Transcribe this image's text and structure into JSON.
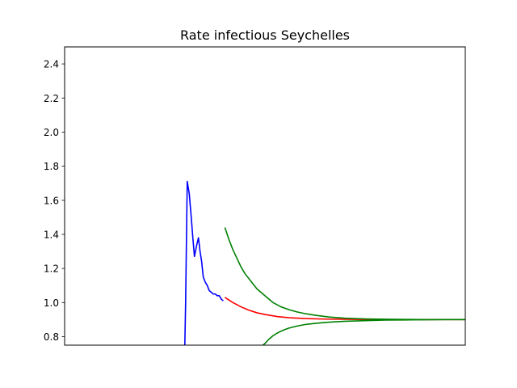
{
  "chart_data": {
    "type": "line",
    "title": "Rate infectious Seychelles",
    "xlabel": "",
    "ylabel": "",
    "ylim": [
      0.75,
      2.5
    ],
    "xlim": [
      0,
      100
    ],
    "yticks": [
      "0.8",
      "1.0",
      "1.2",
      "1.4",
      "1.6",
      "1.8",
      "2.0",
      "2.2",
      "2.4"
    ],
    "xticks_visible": false,
    "grid": false,
    "legend": "none",
    "series": [
      {
        "color": "#0000ff",
        "x": [
          30.0,
          30.2,
          30.6,
          31.1,
          31.6,
          32.0,
          32.4,
          32.9,
          33.4,
          33.8,
          34.2,
          34.6,
          35.1,
          35.6,
          36.1,
          36.6,
          37.1,
          37.6,
          38.1,
          38.6,
          39.1,
          39.6
        ],
        "y": [
          0.75,
          1.0,
          1.71,
          1.64,
          1.5,
          1.38,
          1.27,
          1.33,
          1.38,
          1.3,
          1.24,
          1.15,
          1.12,
          1.1,
          1.07,
          1.06,
          1.05,
          1.05,
          1.04,
          1.04,
          1.02,
          1.01
        ]
      },
      {
        "color": "#ff0000",
        "x": [
          40,
          42,
          44,
          46,
          48,
          50,
          53,
          56,
          60,
          65,
          70,
          75,
          80,
          85,
          90,
          95,
          100
        ],
        "y": [
          1.03,
          1.0,
          0.975,
          0.955,
          0.94,
          0.93,
          0.918,
          0.911,
          0.906,
          0.903,
          0.902,
          0.901,
          0.9,
          0.9,
          0.9,
          0.9,
          0.9
        ]
      },
      {
        "color": "#008000",
        "x": [
          40,
          41,
          42,
          43,
          44,
          45,
          46,
          47,
          48,
          50,
          52,
          54,
          56,
          58,
          60,
          63,
          66,
          70,
          75,
          80,
          85,
          90,
          95,
          100
        ],
        "y": [
          1.44,
          1.37,
          1.31,
          1.26,
          1.21,
          1.17,
          1.14,
          1.11,
          1.08,
          1.04,
          1.0,
          0.975,
          0.958,
          0.945,
          0.935,
          0.924,
          0.915,
          0.908,
          0.904,
          0.902,
          0.901,
          0.9,
          0.9,
          0.9
        ]
      },
      {
        "color": "#008000",
        "x": [
          49.5,
          50,
          51,
          52,
          53,
          54,
          55,
          56,
          58,
          60,
          63,
          66,
          70,
          75,
          80,
          85,
          90,
          95,
          100
        ],
        "y": [
          0.75,
          0.76,
          0.785,
          0.805,
          0.82,
          0.832,
          0.842,
          0.85,
          0.862,
          0.871,
          0.879,
          0.885,
          0.89,
          0.894,
          0.897,
          0.898,
          0.899,
          0.9,
          0.9
        ]
      }
    ]
  }
}
